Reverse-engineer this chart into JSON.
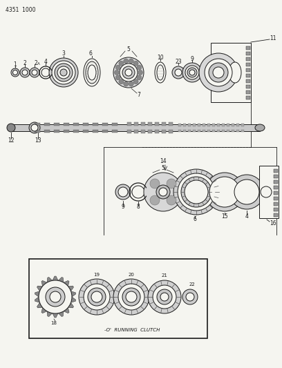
{
  "page_ref": "4351  1000",
  "bg_color": "#f5f5f0",
  "line_color": "#1a1a1a",
  "fig_width": 4.08,
  "fig_height": 5.33,
  "dpi": 100,
  "clutch_label": "-O'  RUNNING  CLUTCH"
}
